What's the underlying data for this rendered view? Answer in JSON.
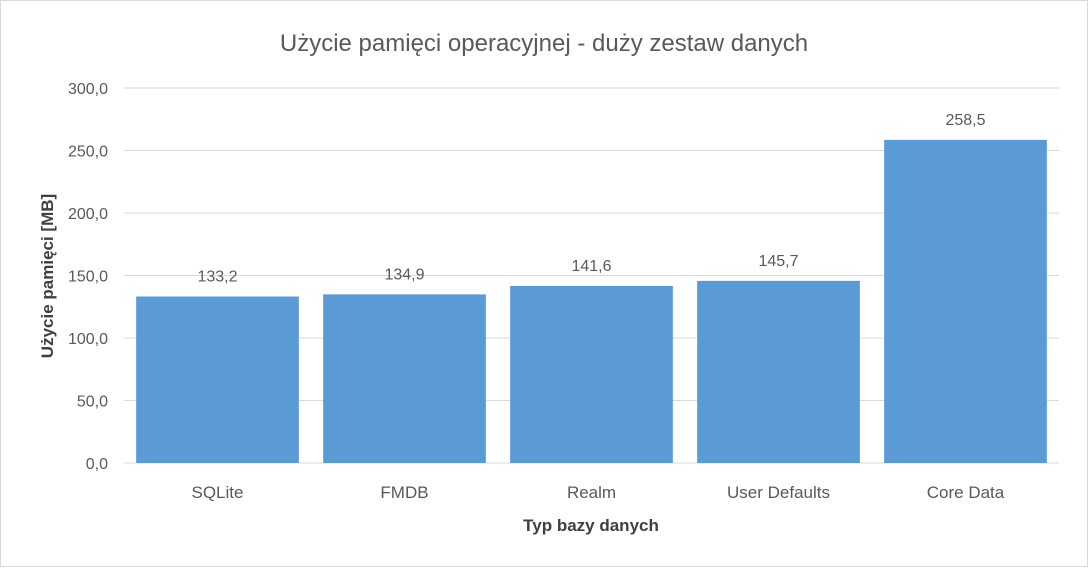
{
  "chart_data": {
    "type": "bar",
    "title": "Użycie pamięci operacyjnej  - duży zestaw danych",
    "xlabel": "Typ bazy danych",
    "ylabel": "Użycie pamięci [MB]",
    "categories": [
      "SQLite",
      "FMDB",
      "Realm",
      "User Defaults",
      "Core Data"
    ],
    "values": [
      133.2,
      134.9,
      141.6,
      145.7,
      258.5
    ],
    "data_labels": [
      "133,2",
      "134,9",
      "141,6",
      "145,7",
      "258,5"
    ],
    "ylim": [
      0,
      300
    ],
    "yticks": [
      0,
      50,
      100,
      150,
      200,
      250,
      300
    ],
    "ytick_labels": [
      "0,0",
      "50,0",
      "100,0",
      "150,0",
      "200,0",
      "250,0",
      "300,0"
    ],
    "grid": true,
    "legend": "none",
    "colors": {
      "bar": "#5b9bd5",
      "grid": "#d9d9d9",
      "text": "#595959",
      "title": "#595959",
      "axis_title": "#404040"
    }
  }
}
